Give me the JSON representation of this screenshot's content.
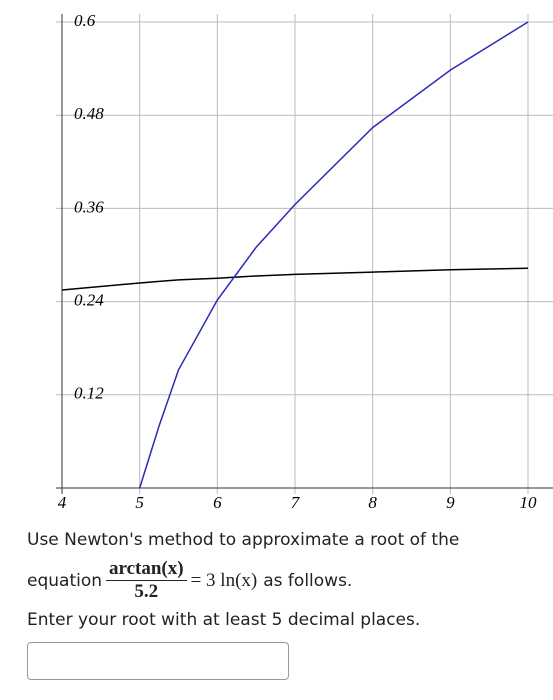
{
  "chart_data": {
    "type": "line",
    "x": [
      4,
      5,
      5.25,
      5.5,
      6,
      6.5,
      7,
      8,
      9,
      10
    ],
    "series": [
      {
        "color": "#000000",
        "values": [
          0.255,
          0.264,
          0.266,
          0.268,
          0.27,
          0.273,
          0.275,
          0.278,
          0.281,
          0.283
        ]
      },
      {
        "color": "#2b2bb8",
        "values": [
          null,
          0,
          0.08,
          0.152,
          0.242,
          0.31,
          0.365,
          0.464,
          0.538,
          0.6
        ]
      }
    ],
    "xlim": [
      4,
      10
    ],
    "ylim": [
      0,
      0.6
    ],
    "xticks": [
      4,
      5,
      6,
      7,
      8,
      9,
      10
    ],
    "yticks": [
      0.12,
      0.24,
      0.36,
      0.48,
      0.6
    ],
    "grid": true
  },
  "question": {
    "line1": "Use Newton's method to approximate a root of the",
    "prefix": "equation",
    "numerator": "arctan(x)",
    "denominator": "5.2",
    "rhs": "= 3 ln(x)",
    "suffix": "as follows.",
    "line3": "Enter your root with at least 5 decimal places."
  }
}
